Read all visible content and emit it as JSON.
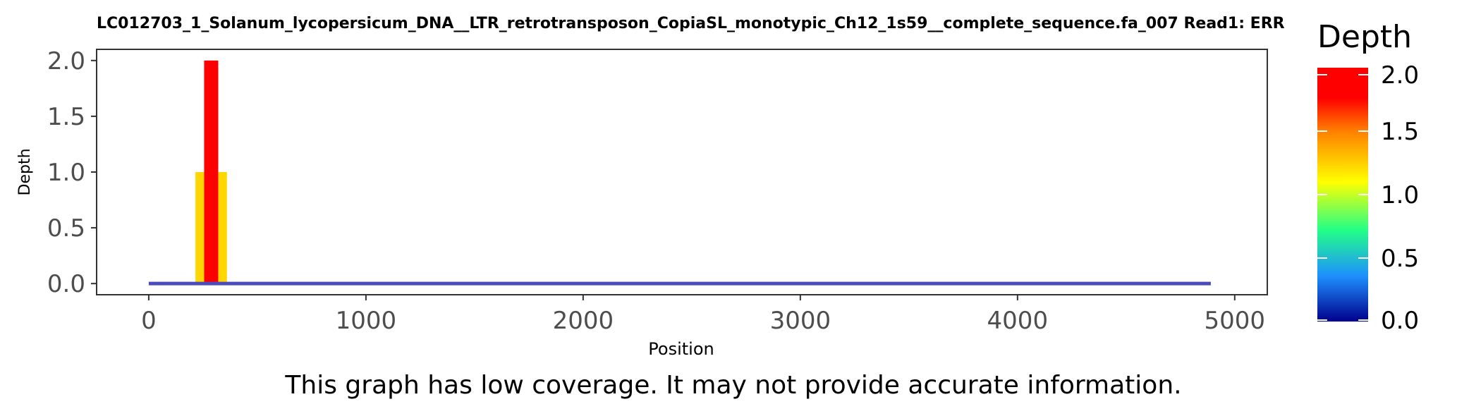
{
  "chart_data": {
    "type": "bar",
    "title": "LC012703_1_Solanum_lycopersicum_DNA__LTR_retrotransposon_CopiaSL_monotypic_Ch12_1s59__complete_sequence.fa_007   Read1: ERR",
    "xlabel": "Position",
    "ylabel": "Depth",
    "xlim": [
      -240,
      5150
    ],
    "ylim": [
      -0.1,
      2.1
    ],
    "x_ticks": [
      0,
      1000,
      2000,
      3000,
      4000,
      5000
    ],
    "x_tick_labels": [
      "0",
      "1000",
      "2000",
      "3000",
      "4000",
      "5000"
    ],
    "y_ticks": [
      0,
      0.5,
      1,
      1.5,
      2
    ],
    "y_tick_labels": [
      "0.0",
      "0.5",
      "1.0",
      "1.5",
      "2.0"
    ],
    "grid": false,
    "bars": [
      {
        "x_start": 215,
        "x_end": 255,
        "depth": 1
      },
      {
        "x_start": 255,
        "x_end": 320,
        "depth": 2
      },
      {
        "x_start": 320,
        "x_end": 360,
        "depth": 1
      }
    ],
    "baseline": {
      "x_start": 0,
      "x_end": 4890,
      "depth": 0
    },
    "colorbar": {
      "title": "Depth",
      "range": [
        0,
        2
      ],
      "ticks": [
        0,
        0.5,
        1,
        1.5,
        2
      ],
      "tick_labels": [
        "0.0",
        "0.5",
        "1.0",
        "1.5",
        "2.0"
      ],
      "colors": [
        "#00008B",
        "#1E90FF",
        "#22FF88",
        "#FFFF00",
        "#FF8000",
        "#FF0000"
      ],
      "stops": [
        0,
        0.18,
        0.36,
        0.55,
        0.75,
        0.88
      ]
    },
    "legend_placement": "right",
    "baseline_color": "#4B4BBB"
  },
  "caption": "This graph has low coverage. It may not provide accurate information."
}
